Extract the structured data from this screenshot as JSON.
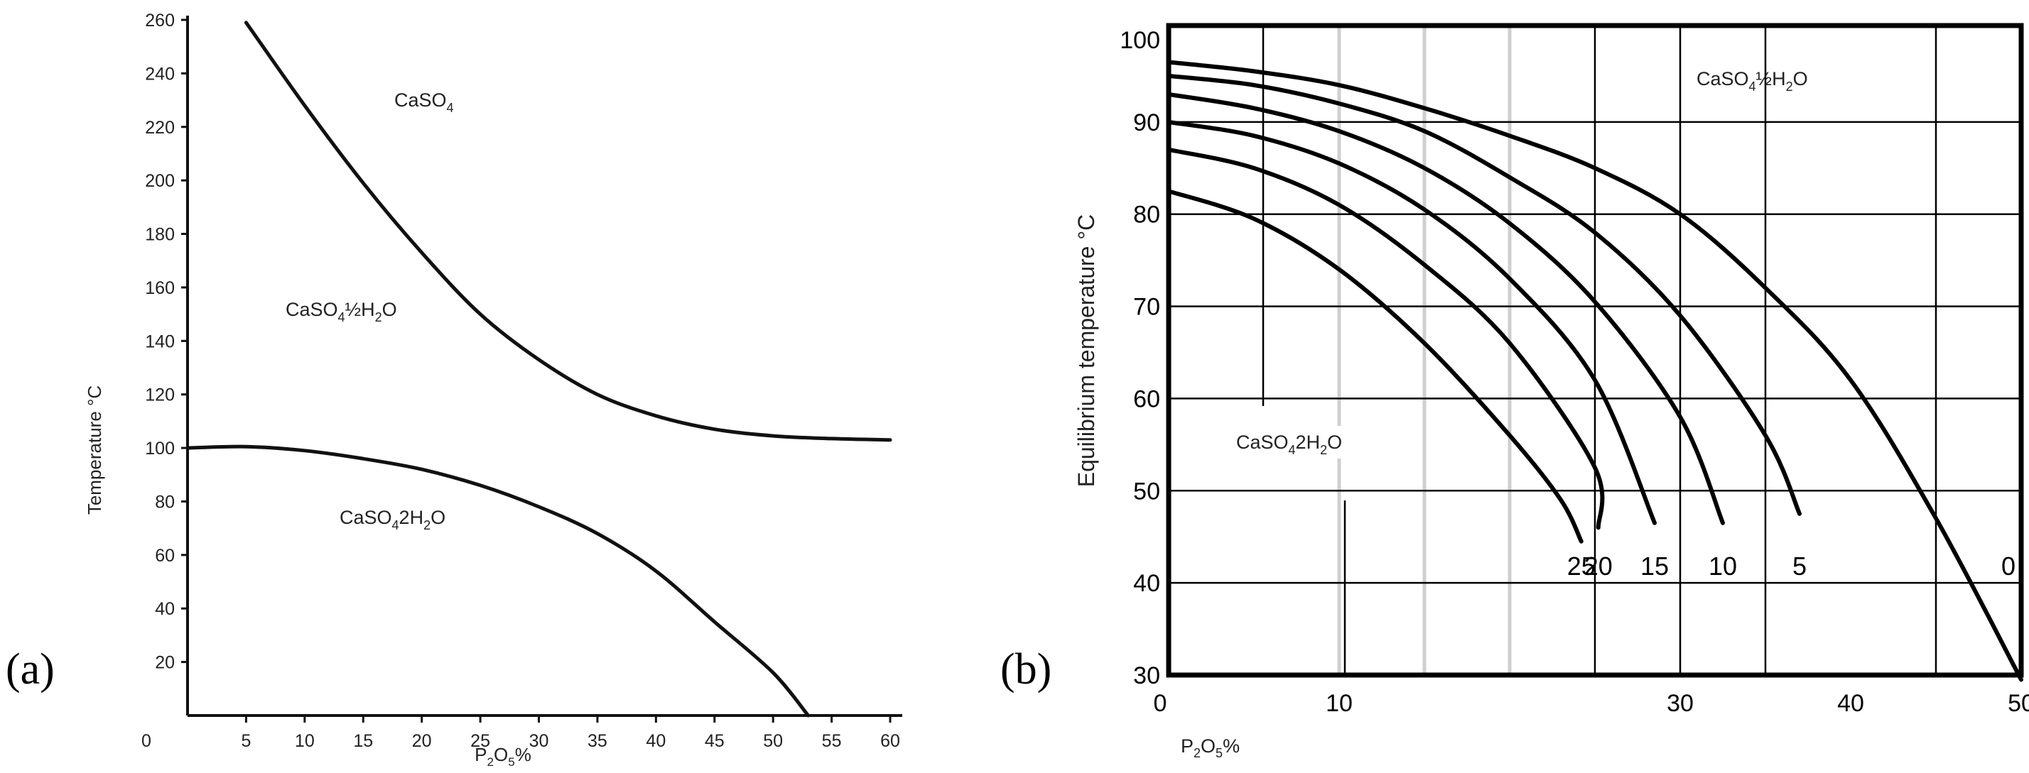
{
  "chart_data": [
    {
      "panel": "(a)",
      "type": "line",
      "xlabel": "P2O5%",
      "xlabel_parts": {
        "main": "P",
        "sub1": "2",
        "mid": "O",
        "sub2": "5",
        "tail": "%"
      },
      "ylabel": "Temperature °C",
      "xlim": [
        0,
        60
      ],
      "ylim": [
        0,
        260
      ],
      "xticks": [
        0,
        5,
        10,
        15,
        20,
        25,
        30,
        35,
        40,
        45,
        50,
        55,
        60
      ],
      "yticks": [
        20,
        40,
        60,
        80,
        100,
        120,
        140,
        160,
        180,
        200,
        220,
        240,
        260
      ],
      "grid": false,
      "regions": [
        {
          "label": "CaSO4",
          "parts": [
            "CaSO",
            "4",
            ""
          ]
        },
        {
          "label": "CaSO4½H2O",
          "parts": [
            "CaSO",
            "4",
            "½H",
            "2",
            "O"
          ]
        },
        {
          "label": "CaSO4.2H2O",
          "parts": [
            "CaSO",
            "4",
            "2H",
            "2",
            "O"
          ]
        }
      ],
      "series": [
        {
          "name": "CaSO4 / CaSO4½H2O boundary",
          "x": [
            5,
            10,
            15,
            20,
            25,
            30,
            35,
            40,
            45,
            50,
            55,
            60
          ],
          "y": [
            259,
            228,
            199,
            173,
            150,
            133,
            120,
            112,
            107,
            104.5,
            103.5,
            103
          ]
        },
        {
          "name": "CaSO4½H2O / CaSO4.2H2O boundary",
          "x": [
            0,
            5,
            10,
            15,
            20,
            25,
            30,
            35,
            40,
            45,
            50,
            53
          ],
          "y": [
            100,
            100.5,
            99,
            96,
            92,
            86,
            78,
            68,
            54,
            35,
            16,
            0
          ]
        }
      ]
    },
    {
      "panel": "(b)",
      "type": "line",
      "xlabel": "P2O5%",
      "xlabel_parts": {
        "main": "P",
        "sub1": "2",
        "mid": "O",
        "sub2": "5",
        "tail": "%"
      },
      "ylabel": "Equilibrium temperature °C",
      "xlim": [
        0,
        50
      ],
      "ylim": [
        30,
        100
      ],
      "xticks": [
        0,
        10,
        30,
        40,
        50
      ],
      "yticks": [
        30,
        40,
        50,
        60,
        70,
        80,
        90,
        100
      ],
      "grid": true,
      "regions": [
        {
          "label": "CaSO4½H2O",
          "parts": [
            "CaSO",
            "4",
            "½H",
            "2",
            "O"
          ]
        },
        {
          "label": "CaSO4.2H2O",
          "parts": [
            "CaSO",
            "4",
            "2H",
            "2",
            "O"
          ]
        }
      ],
      "series": [
        {
          "name": "25",
          "x": [
            0,
            5,
            10,
            15,
            20,
            23,
            24.2
          ],
          "y": [
            82.5,
            79.5,
            74,
            66,
            56,
            49,
            44.5
          ]
        },
        {
          "name": "20",
          "x": [
            0,
            5,
            10,
            15,
            20,
            25,
            25.2
          ],
          "y": [
            87,
            85,
            81,
            74.5,
            66,
            52.5,
            46
          ]
        },
        {
          "name": "15",
          "x": [
            0,
            5,
            10,
            15,
            20,
            25,
            28.5
          ],
          "y": [
            90,
            88.5,
            85.5,
            80.5,
            73,
            62,
            46.5
          ]
        },
        {
          "name": "10",
          "x": [
            0,
            5,
            10,
            15,
            20,
            25,
            30,
            32.5
          ],
          "y": [
            93,
            91.5,
            89,
            85,
            79,
            70.5,
            58,
            46.5
          ]
        },
        {
          "name": "5",
          "x": [
            0,
            5,
            10,
            15,
            20,
            25,
            30,
            35,
            37
          ],
          "y": [
            95,
            94,
            92,
            89,
            84,
            78,
            69,
            56,
            47.5
          ]
        },
        {
          "name": "0",
          "x": [
            0,
            5,
            10,
            15,
            20,
            25,
            30,
            35,
            40,
            45,
            50
          ],
          "y": [
            96.5,
            95.5,
            94,
            91.5,
            88.5,
            85,
            80,
            72,
            62,
            47,
            29.5
          ]
        }
      ]
    }
  ]
}
